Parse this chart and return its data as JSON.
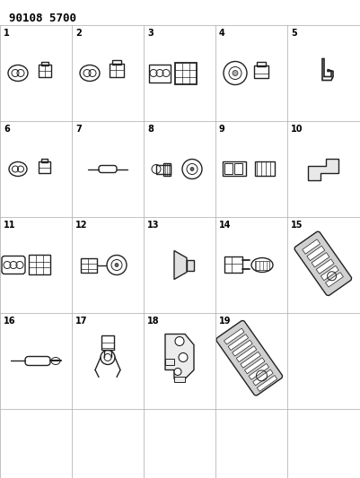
{
  "title": "90108 5700",
  "background_color": "#ffffff",
  "grid_color": "#aaaaaa",
  "text_color": "#000000",
  "figsize": [
    4.02,
    5.33
  ],
  "dpi": 100,
  "title_fontsize": 9,
  "label_fontsize": 7,
  "line_color": "#222222",
  "grid_lw": 0.5,
  "item_lw": 1.0
}
